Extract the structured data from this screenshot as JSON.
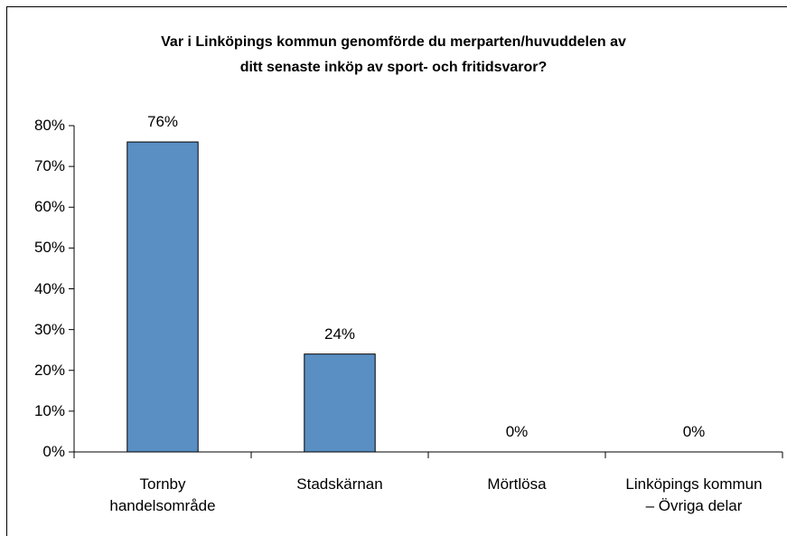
{
  "chart_data": {
    "type": "bar",
    "title": "Var i Linköpings kommun genomförde du merparten/huvuddelen av\nditt senaste inköp av sport- och fritidsvaror?",
    "categories": [
      "Tornby\nhandelsområde",
      "Stadskärnan",
      "Mörtlösa",
      "Linköpings kommun\n– Övriga delar"
    ],
    "values": [
      76,
      24,
      0,
      0
    ],
    "value_labels": [
      "76%",
      "24%",
      "0%",
      "0%"
    ],
    "color": "#5a8fc3",
    "ylim": [
      0,
      80
    ],
    "yticks": [
      {
        "value": 0,
        "label": "0%"
      },
      {
        "value": 10,
        "label": "10%"
      },
      {
        "value": 20,
        "label": "20%"
      },
      {
        "value": 30,
        "label": "30%"
      },
      {
        "value": 40,
        "label": "40%"
      },
      {
        "value": 50,
        "label": "50%"
      },
      {
        "value": 60,
        "label": "60%"
      },
      {
        "value": 70,
        "label": "70%"
      },
      {
        "value": 80,
        "label": "80%"
      }
    ],
    "grid": false
  }
}
